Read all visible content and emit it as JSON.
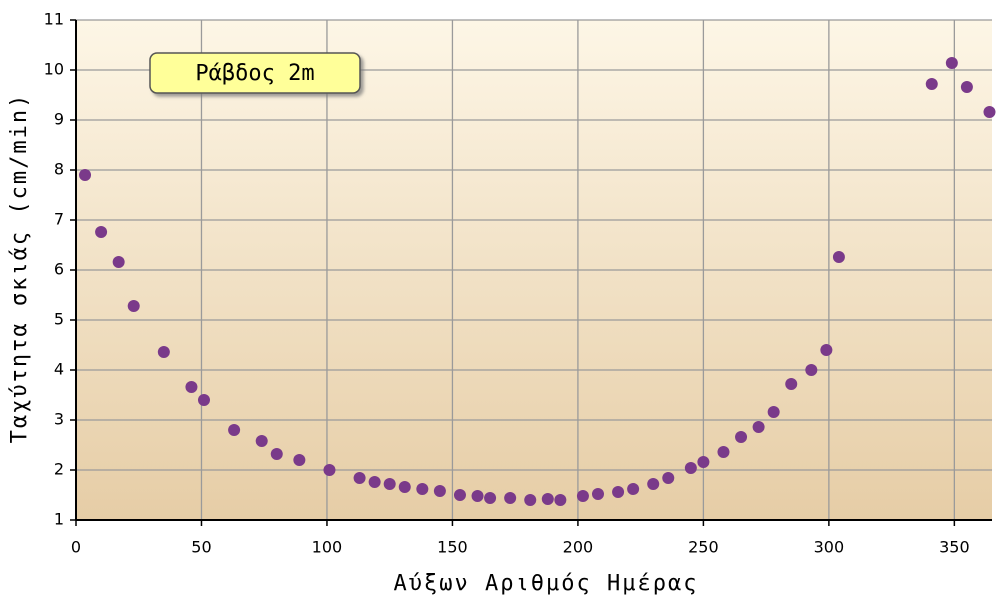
{
  "chart_data": {
    "type": "scatter",
    "xlabel": "Αύξων Αριθμός Ημέρας",
    "ylabel": "Ταχύτητα σκιάς (cm/min)",
    "annotation": "Ράβδος 2m",
    "x": [
      3.6,
      10,
      17,
      23,
      35,
      46,
      51,
      63,
      74,
      80,
      89,
      101,
      113,
      119,
      125,
      131,
      138,
      145,
      153,
      160,
      165,
      173,
      181,
      188,
      193,
      202,
      208,
      216,
      222,
      230,
      236,
      245,
      250,
      258,
      265,
      272,
      278,
      285,
      293,
      299,
      304,
      341,
      349,
      355,
      364
    ],
    "values": [
      7.9,
      6.76,
      6.16,
      5.28,
      4.36,
      3.66,
      3.4,
      2.8,
      2.58,
      2.32,
      2.2,
      2.0,
      1.84,
      1.76,
      1.72,
      1.66,
      1.62,
      1.58,
      1.5,
      1.48,
      1.44,
      1.44,
      1.4,
      1.42,
      1.4,
      1.48,
      1.52,
      1.56,
      1.62,
      1.72,
      1.84,
      2.04,
      2.16,
      2.36,
      2.66,
      2.86,
      3.16,
      3.72,
      4.0,
      4.4,
      6.26,
      9.72,
      10.14,
      9.66,
      9.16
    ],
    "color": "#7a3a8a",
    "xlim": [
      0,
      365
    ],
    "xticks": [
      0,
      50,
      100,
      150,
      200,
      250,
      300,
      350
    ],
    "ylim": [
      1,
      11
    ],
    "yticks": [
      1,
      2,
      3,
      4,
      5,
      6,
      7,
      8,
      9,
      10,
      11
    ],
    "grid": true
  }
}
